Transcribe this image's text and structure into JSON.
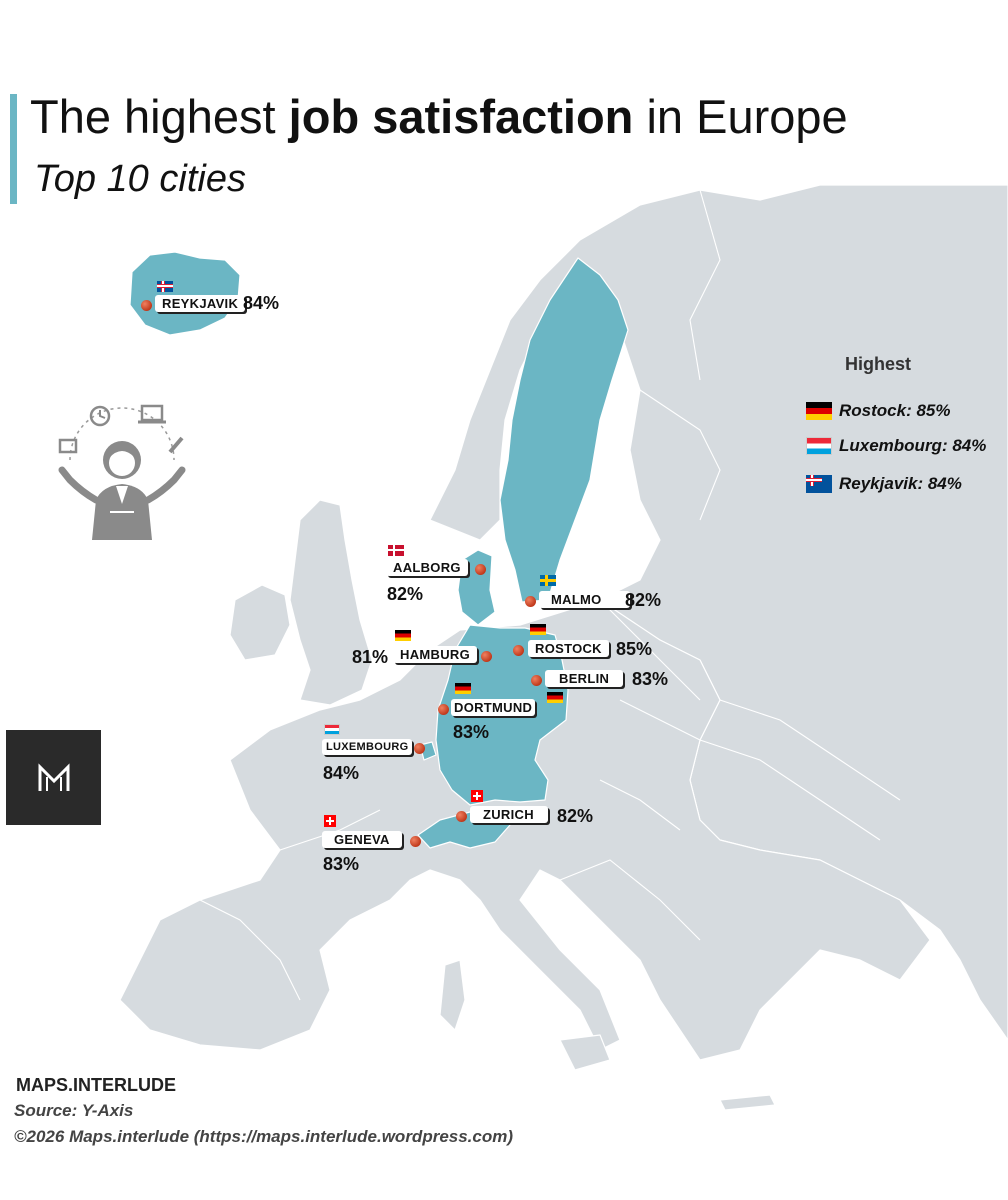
{
  "title": {
    "part1": "The highest ",
    "bold": "job satisfaction",
    "part2": " in Europe",
    "subtitle": "Top 10 cities"
  },
  "colors": {
    "highlight": "#6bb6c4",
    "land": "#d6dbdf",
    "accent_bar": "#6bb6c4",
    "dot": "#c0391b"
  },
  "cities": [
    {
      "name": "REYKJAVIK",
      "value": "84%",
      "flag": "iceland-flag-icon"
    },
    {
      "name": "AALBORG",
      "value": "82%",
      "flag": "denmark-flag-icon"
    },
    {
      "name": "MALMO",
      "value": "82%",
      "flag": "sweden-flag-icon"
    },
    {
      "name": "HAMBURG",
      "value": "81%",
      "flag": "germany-flag-icon"
    },
    {
      "name": "ROSTOCK",
      "value": "85%",
      "flag": "germany-flag-icon"
    },
    {
      "name": "BERLIN",
      "value": "83%",
      "flag": "germany-flag-icon"
    },
    {
      "name": "DORTMUND",
      "value": "83%",
      "flag": "germany-flag-icon"
    },
    {
      "name": "LUXEMBOURG",
      "value": "84%",
      "flag": "luxembourg-flag-icon"
    },
    {
      "name": "ZURICH",
      "value": "82%",
      "flag": "switzerland-flag-icon"
    },
    {
      "name": "GENEVA",
      "value": "83%",
      "flag": "switzerland-flag-icon"
    }
  ],
  "legend": {
    "heading": "Highest",
    "items": [
      {
        "label": "Rostock: 85%",
        "flag": "germany-flag-icon"
      },
      {
        "label": "Luxembourg: 84%",
        "flag": "luxembourg-flag-icon"
      },
      {
        "label": "Reykjavik: 84%",
        "flag": "iceland-flag-icon"
      }
    ]
  },
  "logo_icon": "maps-interlude-logo-icon",
  "illustration_icon": "juggling-worker-icon",
  "footer": {
    "brand": "MAPS.INTERLUDE",
    "source": "Source: Y-Axis",
    "copyright": "©2026 Maps.interlude (https://maps.interlude.wordpress.com)"
  }
}
